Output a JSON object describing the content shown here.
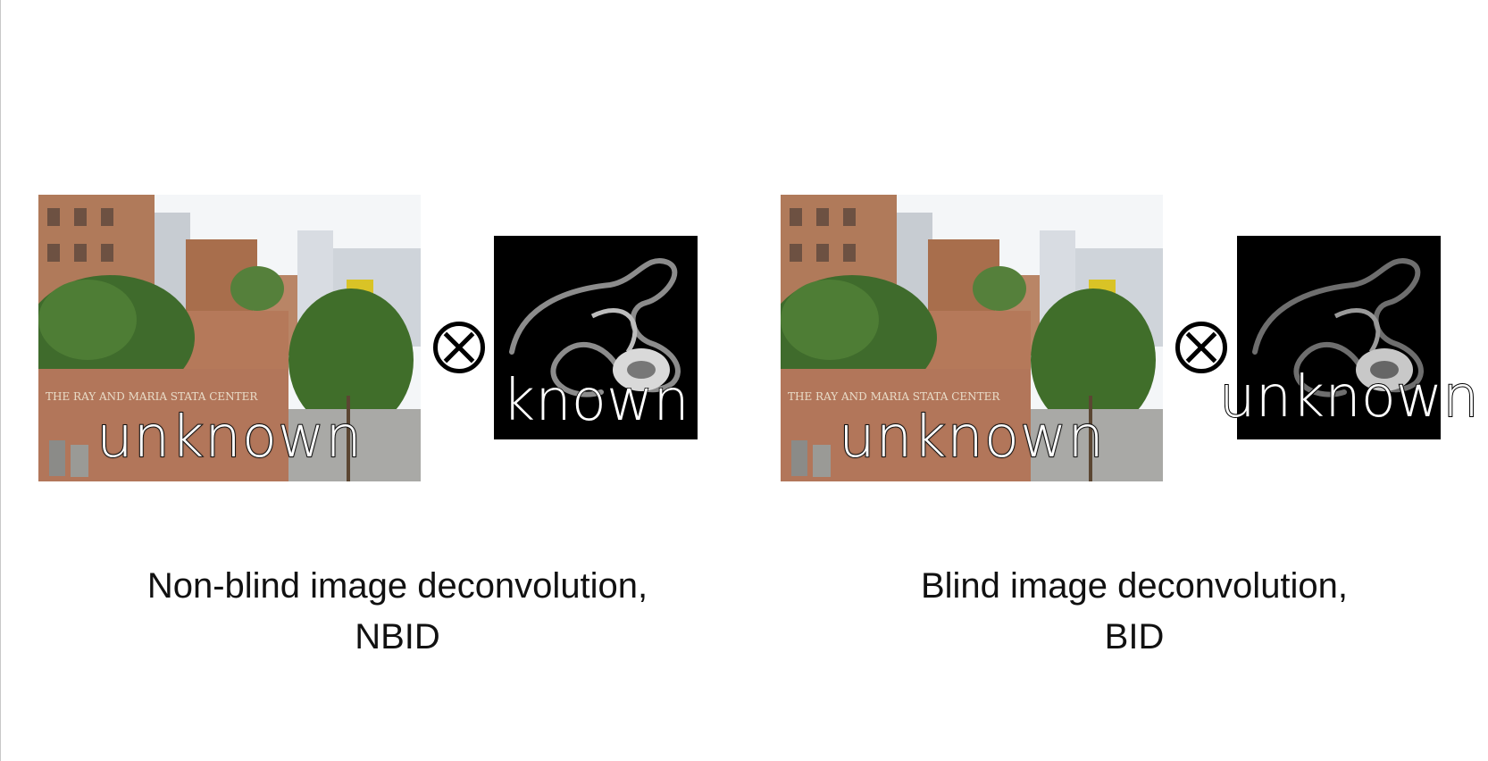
{
  "left_panel": {
    "image_label": "unknown",
    "kernel_label": "known",
    "caption_line1": "Non-blind image deconvolution,",
    "caption_line2": "NBID",
    "operator_icon": "circled-times-icon"
  },
  "right_panel": {
    "image_label": "unknown",
    "kernel_label": "unknown",
    "caption_line1": "Blind image deconvolution,",
    "caption_line2": "BID",
    "operator_icon": "circled-times-icon"
  },
  "photo_sign_text": "THE RAY AND MARIA STATA CENTER",
  "colors": {
    "background": "#ffffff",
    "kernel_background": "#000000",
    "text": "#111111"
  }
}
